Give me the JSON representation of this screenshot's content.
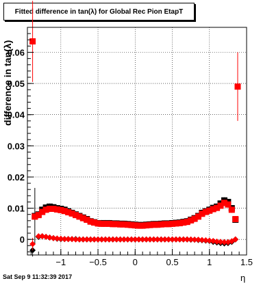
{
  "title": "Fitted difference in tan(λ) for Global Rec Pion EtapT",
  "footer": "Sat Sep  9 11:32:39 2017",
  "chart_data": {
    "type": "scatter",
    "title": "Fitted difference in tan(λ) for Global Rec Pion EtapT",
    "xlabel": "η",
    "ylabel": "difference in tan(λ)",
    "xlim": [
      -1.45,
      1.5
    ],
    "ylim": [
      -0.005,
      0.068
    ],
    "x_ticks": [
      -1,
      -0.5,
      0,
      0.5,
      1,
      1.5
    ],
    "x_tick_labels": [
      "−1",
      "−0.5",
      "0",
      "0.5",
      "1",
      "1.5"
    ],
    "y_ticks": [
      0,
      0.01,
      0.02,
      0.03,
      0.04,
      0.05,
      0.06
    ],
    "y_tick_labels": [
      "0",
      "0.01",
      "0.02",
      "0.03",
      "0.04",
      "0.05",
      "0.06"
    ],
    "grid": true,
    "series": [
      {
        "color": "#000000",
        "marker": "square",
        "x": [
          -1.35,
          -1.3,
          -1.25,
          -1.2,
          -1.15,
          -1.1,
          -1.05,
          -1.0,
          -0.95,
          -0.9,
          -0.85,
          -0.8,
          -0.75,
          -0.7,
          -0.65,
          -0.6,
          -0.55,
          -0.5,
          -0.45,
          -0.4,
          -0.35,
          -0.3,
          -0.25,
          -0.2,
          -0.15,
          -0.1,
          -0.05,
          0.0,
          0.05,
          0.1,
          0.15,
          0.2,
          0.25,
          0.3,
          0.35,
          0.4,
          0.45,
          0.5,
          0.55,
          0.6,
          0.65,
          0.7,
          0.75,
          0.8,
          0.85,
          0.9,
          0.95,
          1.0,
          1.05,
          1.1,
          1.15,
          1.2,
          1.25,
          1.3,
          1.35
        ],
        "y": [
          0.0075,
          0.008,
          0.0095,
          0.0102,
          0.0105,
          0.0103,
          0.01,
          0.0098,
          0.0095,
          0.009,
          0.0085,
          0.008,
          0.0075,
          0.007,
          0.0065,
          0.0058,
          0.0055,
          0.0052,
          0.0052,
          0.0052,
          0.0052,
          0.0051,
          0.0051,
          0.005,
          0.005,
          0.0049,
          0.0048,
          0.0047,
          0.0046,
          0.0046,
          0.0047,
          0.0048,
          0.0049,
          0.0049,
          0.005,
          0.0051,
          0.0051,
          0.0052,
          0.0053,
          0.0054,
          0.0056,
          0.0058,
          0.0063,
          0.0068,
          0.0075,
          0.0085,
          0.009,
          0.0095,
          0.0101,
          0.0105,
          0.0115,
          0.0125,
          0.012,
          0.01,
          0.0063
        ],
        "errors": [
          0.009,
          0.001,
          0.001,
          0.001,
          0.001,
          0.001,
          0.001,
          0.001,
          0.001,
          0.001,
          0.001,
          0.001,
          0.001,
          0.001,
          0.001,
          0.001,
          0.001,
          0.001,
          0.001,
          0.001,
          0.001,
          0.001,
          0.001,
          0.001,
          0.001,
          0.001,
          0.001,
          0.001,
          0.001,
          0.001,
          0.001,
          0.001,
          0.001,
          0.001,
          0.001,
          0.001,
          0.001,
          0.001,
          0.001,
          0.001,
          0.001,
          0.001,
          0.001,
          0.001,
          0.001,
          0.001,
          0.001,
          0.001,
          0.001,
          0.001,
          0.001,
          0.001,
          0.001,
          0.001,
          0.001
        ]
      },
      {
        "color": "#000000",
        "marker": "diamond",
        "x": [
          -1.38,
          -1.3,
          -1.25,
          -1.2,
          -1.15,
          -1.1,
          -1.05,
          -1.0,
          -0.95,
          -0.9,
          -0.85,
          -0.8,
          -0.75,
          -0.7,
          -0.65,
          -0.6,
          -0.55,
          -0.5,
          -0.45,
          -0.4,
          -0.35,
          -0.3,
          -0.25,
          -0.2,
          -0.15,
          -0.1,
          -0.05,
          0.0,
          0.05,
          0.1,
          0.15,
          0.2,
          0.25,
          0.3,
          0.35,
          0.4,
          0.45,
          0.5,
          0.55,
          0.6,
          0.65,
          0.7,
          0.75,
          0.8,
          0.85,
          0.9,
          0.95,
          1.0,
          1.05,
          1.1,
          1.15,
          1.2,
          1.25,
          1.3,
          1.35
        ],
        "y": [
          -0.0035,
          0.0008,
          0.001,
          0.0008,
          0.0006,
          0.0004,
          0.0002,
          0.0001,
          0.0001,
          0.0001,
          0.0001,
          0.0001,
          0.0,
          0.0,
          0.0,
          0.0,
          0.0,
          0.0,
          0.0,
          0.0,
          0.0,
          0.0,
          0.0,
          0.0,
          0.0,
          0.0,
          0.0,
          0.0,
          0.0,
          0.0,
          0.0,
          0.0,
          0.0,
          0.0,
          0.0,
          0.0,
          0.0,
          0.0,
          0.0,
          0.0,
          0.0,
          0.0,
          -0.0001,
          -0.0001,
          -0.0002,
          -0.0003,
          -0.0004,
          -0.0005,
          -0.0008,
          -0.001,
          -0.0012,
          -0.0013,
          -0.0012,
          -0.0008,
          0.0
        ],
        "errors": [
          0.002,
          0.0005,
          0.0005,
          0.0005,
          0.0005,
          0.0005,
          0.0005,
          0.0005,
          0.0005,
          0.0005,
          0.0005,
          0.0005,
          0.0005,
          0.0005,
          0.0005,
          0.0005,
          0.0005,
          0.0005,
          0.0005,
          0.0005,
          0.0005,
          0.0005,
          0.0005,
          0.0005,
          0.0005,
          0.0005,
          0.0005,
          0.0005,
          0.0005,
          0.0005,
          0.0005,
          0.0005,
          0.0005,
          0.0005,
          0.0005,
          0.0005,
          0.0005,
          0.0005,
          0.0005,
          0.0005,
          0.0005,
          0.0005,
          0.0005,
          0.0005,
          0.0005,
          0.0005,
          0.0005,
          0.0005,
          0.0005,
          0.0005,
          0.0005,
          0.0005,
          0.0005,
          0.0005,
          0.0005
        ]
      },
      {
        "color": "#ff0000",
        "marker": "square",
        "x": [
          -1.38,
          -1.35,
          -1.3,
          -1.25,
          -1.2,
          -1.15,
          -1.1,
          -1.05,
          -1.0,
          -0.95,
          -0.9,
          -0.85,
          -0.8,
          -0.75,
          -0.7,
          -0.65,
          -0.6,
          -0.55,
          -0.5,
          -0.45,
          -0.4,
          -0.35,
          -0.3,
          -0.25,
          -0.2,
          -0.15,
          -0.1,
          -0.05,
          0.0,
          0.05,
          0.1,
          0.15,
          0.2,
          0.25,
          0.3,
          0.35,
          0.4,
          0.45,
          0.5,
          0.55,
          0.6,
          0.65,
          0.7,
          0.75,
          0.8,
          0.85,
          0.9,
          0.95,
          1.0,
          1.05,
          1.1,
          1.15,
          1.2,
          1.25,
          1.3,
          1.35,
          1.38
        ],
        "y": [
          0.0635,
          0.0073,
          0.0078,
          0.0088,
          0.0095,
          0.0098,
          0.0098,
          0.0096,
          0.0094,
          0.0091,
          0.0087,
          0.0083,
          0.0078,
          0.0073,
          0.0068,
          0.0063,
          0.0057,
          0.0054,
          0.0051,
          0.005,
          0.005,
          0.005,
          0.0049,
          0.0049,
          0.0048,
          0.0048,
          0.0047,
          0.0046,
          0.0045,
          0.0044,
          0.0044,
          0.0045,
          0.0046,
          0.0047,
          0.0047,
          0.0048,
          0.0049,
          0.0049,
          0.005,
          0.0051,
          0.0052,
          0.0054,
          0.0056,
          0.0061,
          0.0066,
          0.0073,
          0.0082,
          0.0088,
          0.0092,
          0.0097,
          0.0101,
          0.0108,
          0.0117,
          0.0112,
          0.0095,
          0.0065,
          0.049
        ],
        "errors": [
          0.013,
          0.001,
          0.001,
          0.001,
          0.001,
          0.001,
          0.001,
          0.001,
          0.001,
          0.001,
          0.001,
          0.001,
          0.001,
          0.001,
          0.001,
          0.001,
          0.001,
          0.001,
          0.001,
          0.001,
          0.001,
          0.001,
          0.001,
          0.001,
          0.001,
          0.001,
          0.001,
          0.001,
          0.001,
          0.001,
          0.001,
          0.001,
          0.001,
          0.001,
          0.001,
          0.001,
          0.001,
          0.001,
          0.001,
          0.001,
          0.001,
          0.001,
          0.001,
          0.001,
          0.001,
          0.001,
          0.001,
          0.001,
          0.001,
          0.001,
          0.001,
          0.001,
          0.001,
          0.001,
          0.001,
          0.001,
          0.011
        ]
      },
      {
        "color": "#ff0000",
        "marker": "diamond",
        "x": [
          -1.38,
          -1.3,
          -1.25,
          -1.2,
          -1.15,
          -1.1,
          -1.05,
          -1.0,
          -0.95,
          -0.9,
          -0.85,
          -0.8,
          -0.75,
          -0.7,
          -0.65,
          -0.6,
          -0.55,
          -0.5,
          -0.45,
          -0.4,
          -0.35,
          -0.3,
          -0.25,
          -0.2,
          -0.15,
          -0.1,
          -0.05,
          0.0,
          0.05,
          0.1,
          0.15,
          0.2,
          0.25,
          0.3,
          0.35,
          0.4,
          0.45,
          0.5,
          0.55,
          0.6,
          0.65,
          0.7,
          0.75,
          0.8,
          0.85,
          0.9,
          0.95,
          1.0,
          1.05,
          1.1,
          1.15,
          1.2,
          1.25,
          1.3,
          1.35
        ],
        "y": [
          -0.0015,
          0.001,
          0.001,
          0.0008,
          0.0006,
          0.0004,
          0.0003,
          0.0002,
          0.0001,
          0.0001,
          0.0001,
          0.0,
          0.0,
          0.0,
          0.0,
          0.0,
          0.0,
          0.0,
          0.0,
          0.0,
          0.0,
          0.0,
          0.0,
          0.0,
          0.0,
          0.0,
          0.0,
          0.0,
          0.0,
          0.0,
          0.0,
          0.0,
          0.0,
          0.0,
          0.0,
          0.0,
          0.0,
          0.0,
          0.0,
          0.0,
          0.0,
          0.0,
          0.0,
          -0.0001,
          -0.0001,
          -0.0002,
          -0.0003,
          -0.0004,
          -0.0005,
          -0.0007,
          -0.0008,
          -0.0009,
          -0.0009,
          -0.0006,
          0.0
        ],
        "errors": [
          0.002,
          0.0005,
          0.0005,
          0.0005,
          0.0005,
          0.0005,
          0.0005,
          0.0005,
          0.0005,
          0.0005,
          0.0005,
          0.0005,
          0.0005,
          0.0005,
          0.0005,
          0.0005,
          0.0005,
          0.0005,
          0.0005,
          0.0005,
          0.0005,
          0.0005,
          0.0005,
          0.0005,
          0.0005,
          0.0005,
          0.0005,
          0.0005,
          0.0005,
          0.0005,
          0.0005,
          0.0005,
          0.0005,
          0.0005,
          0.0005,
          0.0005,
          0.0005,
          0.0005,
          0.0005,
          0.0005,
          0.0005,
          0.0005,
          0.0005,
          0.0005,
          0.0005,
          0.0005,
          0.0005,
          0.0005,
          0.0005,
          0.0005,
          0.0005,
          0.0005,
          0.0005,
          0.0005,
          0.0005
        ]
      }
    ]
  }
}
